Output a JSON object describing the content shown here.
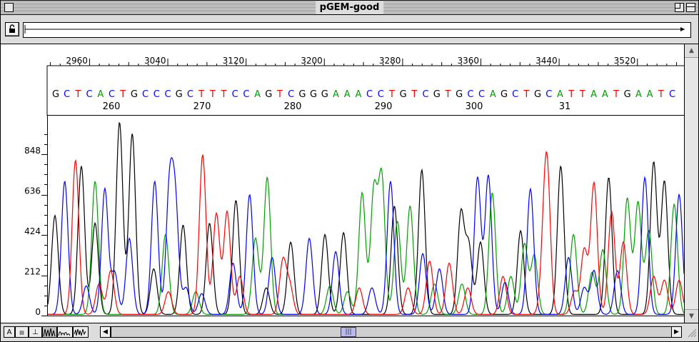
{
  "window": {
    "title": "pGEM-good"
  },
  "ruler": {
    "ticks": [
      "2960",
      "3040",
      "3120",
      "3200",
      "3280",
      "3360",
      "3440",
      "3520"
    ]
  },
  "sequence": {
    "bases": "GCTCACTGCCCGCTTTCCAGTCGGGAAACCTGTCGTGCCAGCTGCATTAATGAATC",
    "positions": [
      "260",
      "270",
      "280",
      "290",
      "300",
      "31"
    ]
  },
  "colors": {
    "A": "#00a000",
    "C": "#0000ff",
    "G": "#000000",
    "T": "#ff0000",
    "range_line": "#000000"
  },
  "chart_data": {
    "type": "line",
    "title": "",
    "xlabel": "",
    "ylabel": "",
    "y_ticks": [
      "848",
      "636",
      "424",
      "212",
      "0"
    ],
    "ylim": [
      0,
      1000
    ],
    "x_range": [
      2917,
      3568
    ],
    "series": [
      {
        "name": "G",
        "peaks": [
          [
            2925,
            520
          ],
          [
            2952,
            780
          ],
          [
            2966,
            480
          ],
          [
            2991,
            1010
          ],
          [
            3004,
            950
          ],
          [
            3026,
            240
          ],
          [
            3056,
            470
          ],
          [
            3083,
            480
          ],
          [
            3110,
            600
          ],
          [
            3141,
            140
          ],
          [
            3166,
            380
          ],
          [
            3201,
            420
          ],
          [
            3220,
            430
          ],
          [
            3272,
            570
          ],
          [
            3300,
            760
          ],
          [
            3340,
            530
          ],
          [
            3348,
            360
          ],
          [
            3360,
            380
          ],
          [
            3401,
            440
          ],
          [
            3442,
            780
          ],
          [
            3491,
            720
          ],
          [
            3537,
            800
          ],
          [
            3548,
            700
          ]
        ]
      },
      {
        "name": "A",
        "peaks": [
          [
            2966,
            700
          ],
          [
            3038,
            420
          ],
          [
            3069,
            120
          ],
          [
            3130,
            400
          ],
          [
            3142,
            720
          ],
          [
            3206,
            150
          ],
          [
            3224,
            120
          ],
          [
            3239,
            640
          ],
          [
            3251,
            650
          ],
          [
            3259,
            720
          ],
          [
            3275,
            490
          ],
          [
            3288,
            570
          ],
          [
            3313,
            160
          ],
          [
            3341,
            160
          ],
          [
            3372,
            640
          ],
          [
            3391,
            200
          ],
          [
            3405,
            370
          ],
          [
            3415,
            310
          ],
          [
            3455,
            420
          ],
          [
            3474,
            220
          ],
          [
            3485,
            340
          ],
          [
            3510,
            610
          ],
          [
            3521,
            590
          ],
          [
            3532,
            440
          ],
          [
            3558,
            580
          ]
        ]
      },
      {
        "name": "C",
        "peaks": [
          [
            2935,
            700
          ],
          [
            2957,
            150
          ],
          [
            2976,
            660
          ],
          [
            2986,
            220
          ],
          [
            3001,
            400
          ],
          [
            3027,
            700
          ],
          [
            3042,
            640
          ],
          [
            3048,
            570
          ],
          [
            3059,
            140
          ],
          [
            3075,
            110
          ],
          [
            3107,
            270
          ],
          [
            3124,
            630
          ],
          [
            3147,
            300
          ],
          [
            3185,
            400
          ],
          [
            3212,
            330
          ],
          [
            3249,
            140
          ],
          [
            3268,
            700
          ],
          [
            3301,
            320
          ],
          [
            3318,
            240
          ],
          [
            3357,
            720
          ],
          [
            3368,
            730
          ],
          [
            3385,
            170
          ],
          [
            3411,
            660
          ],
          [
            3450,
            300
          ],
          [
            3466,
            140
          ],
          [
            3476,
            230
          ],
          [
            3500,
            230
          ],
          [
            3528,
            720
          ],
          [
            3563,
            630
          ]
        ]
      },
      {
        "name": "T",
        "peaks": [
          [
            2946,
            810
          ],
          [
            2970,
            160
          ],
          [
            2982,
            230
          ],
          [
            3041,
            120
          ],
          [
            3076,
            840
          ],
          [
            3090,
            530
          ],
          [
            3101,
            540
          ],
          [
            3114,
            200
          ],
          [
            3158,
            280
          ],
          [
            3165,
            150
          ],
          [
            3236,
            140
          ],
          [
            3286,
            140
          ],
          [
            3308,
            280
          ],
          [
            3328,
            270
          ],
          [
            3347,
            140
          ],
          [
            3383,
            200
          ],
          [
            3424,
            210
          ],
          [
            3428,
            740
          ],
          [
            3456,
            120
          ],
          [
            3466,
            340
          ],
          [
            3476,
            690
          ],
          [
            3494,
            540
          ],
          [
            3506,
            380
          ],
          [
            3537,
            200
          ],
          [
            3548,
            180
          ],
          [
            3563,
            180
          ]
        ]
      }
    ]
  }
}
